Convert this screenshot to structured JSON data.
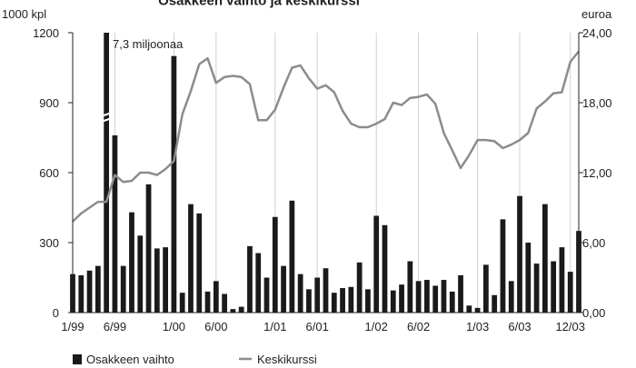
{
  "chart_data": {
    "type": "bar+line",
    "title": "Osakkeen vaihto ja keskikurssi",
    "left_unit": "1000 kpl",
    "right_unit": "euroa",
    "left_ylim": [
      0,
      1200
    ],
    "right_ylim": [
      0,
      24
    ],
    "left_ticks": [
      "0",
      "300",
      "600",
      "900",
      "1200"
    ],
    "right_ticks": [
      "0,00",
      "6,00",
      "12,00",
      "18,00",
      "24,00"
    ],
    "x_ticks": [
      "1/99",
      "6/99",
      "1/00",
      "6/00",
      "1/01",
      "6/01",
      "1/02",
      "6/02",
      "1/03",
      "6/03",
      "12/03"
    ],
    "annotation": "7,3 miljoonaa",
    "grid": "vertical at x ticks",
    "legend_position": "bottom-left",
    "series": [
      {
        "name": "Osakkeen vaihto",
        "kind": "bar",
        "axis": "left",
        "color": "#1a1a1a",
        "truncated_months": [
          6
        ],
        "values": [
          165,
          160,
          180,
          200,
          7300,
          760,
          200,
          430,
          330,
          550,
          275,
          280,
          1100,
          85,
          465,
          425,
          90,
          135,
          80,
          15,
          25,
          285,
          255,
          150,
          410,
          200,
          480,
          165,
          100,
          150,
          190,
          85,
          105,
          110,
          215,
          100,
          415,
          375,
          95,
          120,
          220,
          135,
          140,
          115,
          140,
          90,
          160,
          30,
          20,
          205,
          75,
          400,
          135,
          500,
          300,
          210,
          465,
          220,
          280,
          175,
          350
        ]
      },
      {
        "name": "Keskikurssi",
        "kind": "line",
        "axis": "right",
        "color": "#8c8c8c",
        "values": [
          7.8,
          8.5,
          9.0,
          9.5,
          9.5,
          11.8,
          11.2,
          11.3,
          12.0,
          12.0,
          11.8,
          12.3,
          13.0,
          17.0,
          19.0,
          21.3,
          21.8,
          19.7,
          20.2,
          20.3,
          20.2,
          19.6,
          16.5,
          16.5,
          17.4,
          19.3,
          21.0,
          21.2,
          20.1,
          19.2,
          19.5,
          18.9,
          17.3,
          16.2,
          15.9,
          15.9,
          16.2,
          16.6,
          18.0,
          17.8,
          18.4,
          18.5,
          18.7,
          17.9,
          15.4,
          13.9,
          12.4,
          13.5,
          14.8,
          14.8,
          14.7,
          14.1,
          14.4,
          14.8,
          15.4,
          17.5,
          18.1,
          18.8,
          18.9,
          21.5,
          22.4
        ]
      }
    ]
  }
}
